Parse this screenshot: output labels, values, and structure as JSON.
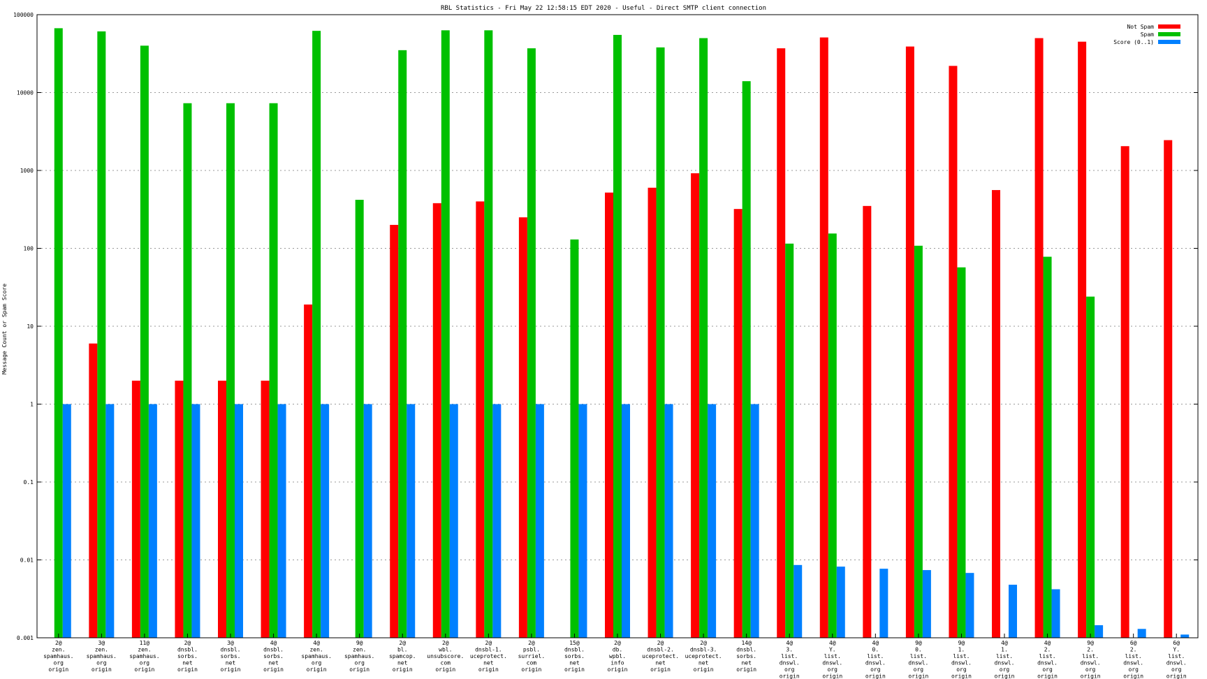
{
  "chart_data": {
    "type": "bar",
    "title": "RBL Statistics - Fri May 22 12:58:15 EDT 2020 - Useful - Direct SMTP client connection",
    "xlabel": "",
    "ylabel": "Message Count or Spam Score",
    "yscale": "log",
    "ylim": [
      0.001,
      100000
    ],
    "grid": true,
    "legend_position": "top-right",
    "yticks": [
      "0.001",
      "0.01",
      "0.1",
      "1",
      "10",
      "100",
      "1000",
      "10000",
      "100000"
    ],
    "categories": [
      [
        "2@",
        "zen.",
        "spamhaus.",
        "org",
        "origin"
      ],
      [
        "3@",
        "zen.",
        "spamhaus.",
        "org",
        "origin"
      ],
      [
        "11@",
        "zen.",
        "spamhaus.",
        "org",
        "origin"
      ],
      [
        "2@",
        "dnsbl.",
        "sorbs.",
        "net",
        "origin"
      ],
      [
        "3@",
        "dnsbl.",
        "sorbs.",
        "net",
        "origin"
      ],
      [
        "4@",
        "dnsbl.",
        "sorbs.",
        "net",
        "origin"
      ],
      [
        "4@",
        "zen.",
        "spamhaus.",
        "org",
        "origin"
      ],
      [
        "9@",
        "zen.",
        "spamhaus.",
        "org",
        "origin"
      ],
      [
        "2@",
        "bl.",
        "spamcop.",
        "net",
        "origin"
      ],
      [
        "2@",
        "wbl.",
        "unsubscore.",
        "com",
        "origin"
      ],
      [
        "2@",
        "dnsbl-1.",
        "uceprotect.",
        "net",
        "origin"
      ],
      [
        "2@",
        "psbl.",
        "surriel.",
        "com",
        "origin"
      ],
      [
        "15@",
        "dnsbl.",
        "sorbs.",
        "net",
        "origin"
      ],
      [
        "2@",
        "db.",
        "wpbl.",
        "info",
        "origin"
      ],
      [
        "2@",
        "dnsbl-2.",
        "uceprotect.",
        "net",
        "origin"
      ],
      [
        "2@",
        "dnsbl-3.",
        "uceprotect.",
        "net",
        "origin"
      ],
      [
        "14@",
        "dnsbl.",
        "sorbs.",
        "net",
        "origin"
      ],
      [
        "4@",
        "3.",
        "list.",
        "dnswl.",
        "org",
        "origin"
      ],
      [
        "4@",
        "Y.",
        "list.",
        "dnswl.",
        "org",
        "origin"
      ],
      [
        "4@",
        "0.",
        "list.",
        "dnswl.",
        "org",
        "origin"
      ],
      [
        "9@",
        "0.",
        "list.",
        "dnswl.",
        "org",
        "origin"
      ],
      [
        "9@",
        "1.",
        "list.",
        "dnswl.",
        "org",
        "origin"
      ],
      [
        "4@",
        "1.",
        "list.",
        "dnswl.",
        "org",
        "origin"
      ],
      [
        "4@",
        "2.",
        "list.",
        "dnswl.",
        "org",
        "origin"
      ],
      [
        "9@",
        "2.",
        "list.",
        "dnswl.",
        "org",
        "origin"
      ],
      [
        "6@",
        "2.",
        "list.",
        "dnswl.",
        "org",
        "origin"
      ],
      [
        "6@",
        "Y.",
        "list.",
        "dnswl.",
        "org",
        "origin"
      ]
    ],
    "series": [
      {
        "name": "Not Spam",
        "color": "#ff0000",
        "values": [
          null,
          6,
          2,
          2,
          2,
          2,
          19,
          null,
          200,
          380,
          400,
          250,
          null,
          520,
          600,
          920,
          320,
          37000,
          51000,
          350,
          39000,
          22000,
          560,
          50000,
          45000,
          2050,
          2450
        ]
      },
      {
        "name": "Spam",
        "color": "#00c000",
        "values": [
          67000,
          61000,
          40000,
          7300,
          7300,
          7300,
          62000,
          420,
          35000,
          63000,
          63000,
          37000,
          130,
          55000,
          38000,
          50000,
          14000,
          115,
          155,
          null,
          108,
          57,
          null,
          78,
          24,
          null,
          null
        ]
      },
      {
        "name": "Score (0..1)",
        "color": "#0080ff",
        "values": [
          1,
          1,
          1,
          1,
          1,
          1,
          1,
          1,
          1,
          1,
          1,
          1,
          1,
          1,
          1,
          1,
          1,
          0.0086,
          0.0082,
          0.0077,
          0.0074,
          0.0068,
          0.0048,
          0.0042,
          0.00145,
          0.0013,
          0.0011
        ]
      }
    ]
  }
}
